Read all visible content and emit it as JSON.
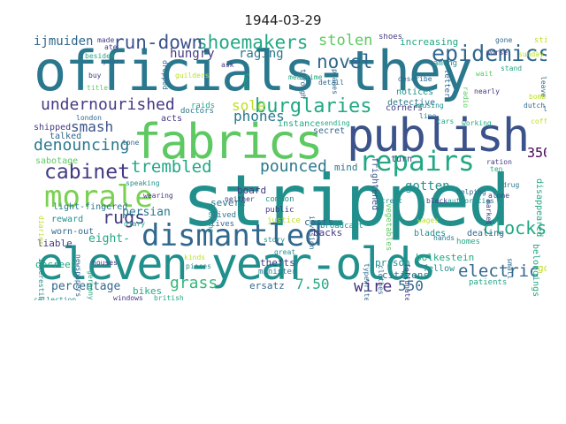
{
  "title": "1944-03-29",
  "colors": {
    "teal": "#21908d",
    "darkteal": "#2a788e",
    "blue": "#31688e",
    "indigo": "#3b528b",
    "navy": "#443a83",
    "purple": "#46327e",
    "dark": "#440154",
    "green": "#5ec962",
    "lime": "#7ad151",
    "yellow": "#bddf26",
    "mint": "#22a884",
    "sea": "#35b779"
  },
  "words": [
    {
      "text": "stripped",
      "c": "teal"
    },
    {
      "text": "officials-they",
      "c": "darkteal"
    },
    {
      "text": "eleven-year-olds",
      "c": "teal"
    },
    {
      "text": "fabrics",
      "c": "green"
    },
    {
      "text": "publish",
      "c": "indigo"
    },
    {
      "text": "dismantled",
      "c": "blue"
    },
    {
      "text": "morale",
      "c": "lime"
    },
    {
      "text": "repairs",
      "c": "mint"
    },
    {
      "text": "epidemics",
      "c": "blue"
    },
    {
      "text": "shoemakers",
      "c": "mint"
    },
    {
      "text": "run-down",
      "c": "indigo"
    },
    {
      "text": "novel",
      "c": "blue"
    },
    {
      "text": "burglaries",
      "c": "mint"
    },
    {
      "text": "undernourished",
      "c": "navy"
    },
    {
      "text": "cabinet",
      "c": "navy"
    },
    {
      "text": "denouncing",
      "c": "darkteal"
    },
    {
      "text": "trembled",
      "c": "mint"
    },
    {
      "text": "rugs",
      "c": "navy"
    },
    {
      "text": "pounced",
      "c": "darkteal"
    },
    {
      "text": "clocks",
      "c": "mint"
    },
    {
      "text": "electric",
      "c": "blue"
    },
    {
      "text": "grass",
      "c": "sea"
    },
    {
      "text": "wire",
      "c": "purple"
    },
    {
      "text": "550",
      "c": "blue"
    },
    {
      "text": "7.50",
      "c": "mint"
    },
    {
      "text": "stolen",
      "c": "green"
    },
    {
      "text": "smash",
      "c": "indigo"
    },
    {
      "text": "phones",
      "c": "darkteal"
    },
    {
      "text": "sole",
      "c": "yellow"
    },
    {
      "text": "hungry",
      "c": "navy"
    },
    {
      "text": "raging",
      "c": "darkteal"
    },
    {
      "text": "ijmuiden",
      "c": "blue"
    },
    {
      "text": "persian",
      "c": "darkteal"
    },
    {
      "text": "eight-",
      "c": "mint"
    },
    {
      "text": "percentage",
      "c": "blue"
    },
    {
      "text": "350",
      "c": "dark"
    },
    {
      "text": "gotten",
      "c": "teal"
    },
    {
      "text": "mind",
      "c": "darkteal"
    },
    {
      "text": "increasing",
      "c": "mint"
    },
    {
      "text": "board",
      "c": "navy"
    },
    {
      "text": "severe",
      "c": "darkteal"
    },
    {
      "text": "prison",
      "c": "teal"
    },
    {
      "text": "citizens",
      "c": "darkteal"
    },
    {
      "text": "bolkestein",
      "c": "mint"
    },
    {
      "text": "goods",
      "c": "yellow"
    },
    {
      "text": "thefts",
      "c": "navy"
    },
    {
      "text": "ersatz",
      "c": "blue"
    },
    {
      "text": "bikes",
      "c": "mint"
    },
    {
      "text": "sabotage",
      "c": "green"
    },
    {
      "text": "light-fingered",
      "c": "darkteal"
    },
    {
      "text": "reward",
      "c": "teal"
    },
    {
      "text": "worn-out",
      "c": "blue"
    },
    {
      "text": "liable",
      "c": "navy"
    },
    {
      "text": "decrees",
      "c": "mint"
    },
    {
      "text": "shipped",
      "c": "navy"
    },
    {
      "text": "talked",
      "c": "blue"
    },
    {
      "text": "acts",
      "c": "navy"
    },
    {
      "text": "instance",
      "c": "mint"
    },
    {
      "text": "secret",
      "c": "blue"
    },
    {
      "text": "costs",
      "c": "blue"
    },
    {
      "text": "backs",
      "c": "navy"
    },
    {
      "text": "dealing",
      "c": "blue"
    },
    {
      "text": "blades",
      "c": "teal"
    },
    {
      "text": "fellow",
      "c": "teal"
    },
    {
      "text": "corners",
      "c": "navy"
    },
    {
      "text": "notices",
      "c": "teal"
    },
    {
      "text": "detective",
      "c": "darkteal"
    },
    {
      "text": "turn",
      "c": "navy"
    },
    {
      "text": "raids",
      "c": "mint"
    },
    {
      "text": "doctors",
      "c": "darkteal"
    },
    {
      "text": "lived",
      "c": "darkteal"
    },
    {
      "text": "lives",
      "c": "blue"
    },
    {
      "text": "broadcast",
      "c": "teal"
    },
    {
      "text": "patients",
      "c": "mint"
    },
    {
      "text": "homes",
      "c": "mint"
    },
    {
      "text": "frightened",
      "c": "indigo"
    },
    {
      "text": "clothes",
      "c": "blue"
    },
    {
      "text": "vegetables",
      "c": "green"
    },
    {
      "text": "typewriters",
      "c": "blue"
    },
    {
      "text": "fortunately",
      "c": "navy"
    },
    {
      "text": "disappeared",
      "c": "mint"
    },
    {
      "text": "belongings",
      "c": "mint"
    },
    {
      "text": "letters",
      "c": "blue"
    },
    {
      "text": "among",
      "c": "teal"
    },
    {
      "text": "shoes",
      "c": "navy"
    },
    {
      "text": "still",
      "c": "yellow"
    },
    {
      "text": "coffee",
      "c": "yellow"
    },
    {
      "text": "cars",
      "c": "mint"
    },
    {
      "text": "dutch",
      "c": "blue"
    },
    {
      "text": "lay",
      "c": "blue"
    },
    {
      "text": "bombs",
      "c": "yellow"
    },
    {
      "text": "ration",
      "c": "navy"
    },
    {
      "text": "ten",
      "c": "mint"
    },
    {
      "text": "stand",
      "c": "mint"
    },
    {
      "text": "nearly",
      "c": "navy"
    },
    {
      "text": "leave",
      "c": "blue"
    },
    {
      "text": "common",
      "c": "teal"
    },
    {
      "text": "public",
      "c": "navy"
    },
    {
      "text": "justice",
      "c": "yellow"
    },
    {
      "text": "minister",
      "c": "darkteal"
    },
    {
      "text": "invasion",
      "c": "blue"
    },
    {
      "text": "helping",
      "c": "blue"
    },
    {
      "text": "authorities",
      "c": "teal"
    },
    {
      "text": "market",
      "c": "navy"
    },
    {
      "text": "describe",
      "c": "blue"
    },
    {
      "text": "amusing",
      "c": "teal"
    },
    {
      "text": "sending",
      "c": "mint"
    },
    {
      "text": "line",
      "c": "darkteal"
    },
    {
      "text": "diary",
      "c": "mint"
    },
    {
      "text": "diaries",
      "c": "yellow"
    },
    {
      "text": "speaking",
      "c": "teal"
    },
    {
      "text": "wearing",
      "c": "navy"
    },
    {
      "text": "interesting",
      "c": "teal"
    },
    {
      "text": "houses",
      "c": "navy"
    },
    {
      "text": "buy",
      "c": "navy"
    },
    {
      "text": "title",
      "c": "green"
    },
    {
      "text": "london",
      "c": "blue"
    },
    {
      "text": "collection",
      "c": "teal"
    },
    {
      "text": "besides",
      "c": "mint"
    },
    {
      "text": "years",
      "c": "blue"
    },
    {
      "text": "guilders",
      "c": "yellow"
    },
    {
      "text": "tone",
      "c": "blue"
    },
    {
      "text": "kinds",
      "c": "yellow"
    },
    {
      "text": "dropped",
      "c": "blue"
    },
    {
      "text": "ask",
      "c": "navy"
    },
    {
      "text": "meantime",
      "c": "mint"
    },
    {
      "text": "evening",
      "c": "teal"
    },
    {
      "text": "street",
      "c": "teal"
    },
    {
      "text": "black",
      "c": "navy"
    },
    {
      "text": "hands",
      "c": "darkteal"
    },
    {
      "text": "small",
      "c": "blue"
    },
    {
      "text": "working",
      "c": "mint"
    },
    {
      "text": "sunday",
      "c": "yellow"
    },
    {
      "text": "newspapers",
      "c": "blue"
    },
    {
      "text": "germany",
      "c": "mint"
    },
    {
      "text": "windows",
      "c": "navy"
    },
    {
      "text": "british",
      "c": "mint"
    },
    {
      "text": "great",
      "c": "teal"
    },
    {
      "text": "alone",
      "c": "navy"
    },
    {
      "text": "drug",
      "c": "darkteal"
    },
    {
      "text": "radio",
      "c": "green"
    },
    {
      "text": "through",
      "c": "blue"
    },
    {
      "text": "wait",
      "c": "green"
    },
    {
      "text": "made",
      "c": "navy"
    },
    {
      "text": "ate",
      "c": "navy"
    },
    {
      "text": "gone",
      "c": "blue"
    },
    {
      "text": "worse",
      "c": "navy"
    },
    {
      "text": "wages",
      "c": "yellow"
    },
    {
      "text": "food",
      "c": "mint"
    },
    {
      "text": "planes",
      "c": "blue"
    },
    {
      "text": "detail",
      "c": "blue"
    },
    {
      "text": "neither",
      "c": "navy"
    },
    {
      "text": "pieces",
      "c": "teal"
    },
    {
      "text": "story",
      "c": "teal"
    },
    {
      "text": "ticket",
      "c": "mint"
    }
  ]
}
